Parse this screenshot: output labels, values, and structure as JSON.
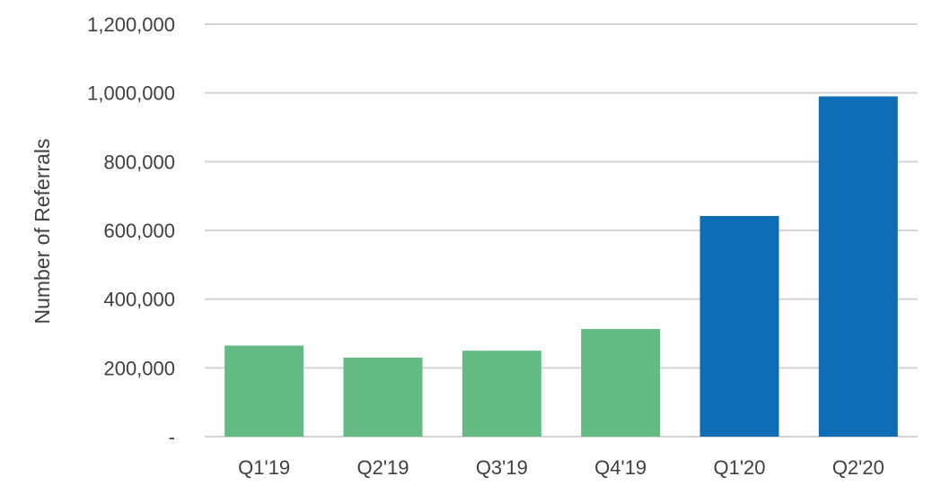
{
  "chart_data": {
    "type": "bar",
    "title": "",
    "xlabel": "",
    "ylabel": "Number of Referrals",
    "categories": [
      "Q1'19",
      "Q2'19",
      "Q3'19",
      "Q4'19",
      "Q1'20",
      "Q2'20"
    ],
    "values": [
      265000,
      230000,
      250000,
      313000,
      642000,
      990000
    ],
    "bar_colors": [
      "#63bb83",
      "#63bb83",
      "#63bb83",
      "#63bb83",
      "#0f6db6",
      "#0f6db6"
    ],
    "ylim": [
      0,
      1200000
    ],
    "y_ticks": [
      0,
      200000,
      400000,
      600000,
      800000,
      1000000,
      1200000
    ],
    "y_tick_labels": [
      "-",
      "200,000",
      "400,000",
      "600,000",
      "800,000",
      "1,000,000",
      "1,200,000"
    ],
    "grid": true,
    "legend": "none"
  }
}
